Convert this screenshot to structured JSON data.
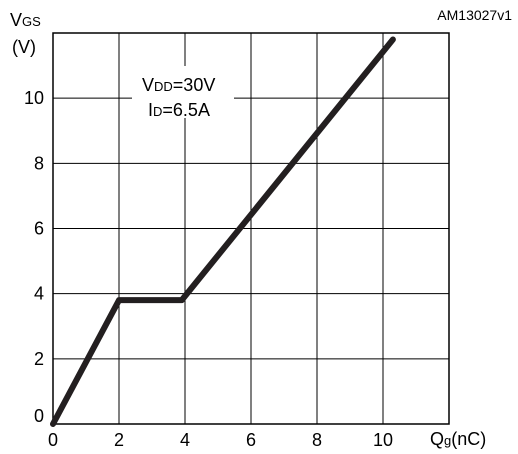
{
  "figure_ref": "AM13027v1",
  "chart_data": {
    "type": "line",
    "ylabel_main": "V",
    "ylabel_sub": "GS",
    "ylabel_unit": "(V)",
    "xlabel_main": "Q",
    "xlabel_sub": "g",
    "xlabel_unit": "(nC)",
    "xlim": [
      0,
      12
    ],
    "ylim": [
      0,
      12
    ],
    "xticks": [
      0,
      2,
      4,
      6,
      8,
      10
    ],
    "yticks": [
      0,
      2,
      4,
      6,
      8,
      10
    ],
    "grid": true,
    "series": [
      {
        "x": [
          0,
          2.0,
          3.9,
          10.3
        ],
        "y": [
          0,
          3.8,
          3.8,
          11.8
        ]
      }
    ],
    "annotations": {
      "line1_main": "V",
      "line1_sub": "DD",
      "line1_value": "=30V",
      "line2_main": "I",
      "line2_sub": "D",
      "line2_value": "=6.5A"
    }
  }
}
